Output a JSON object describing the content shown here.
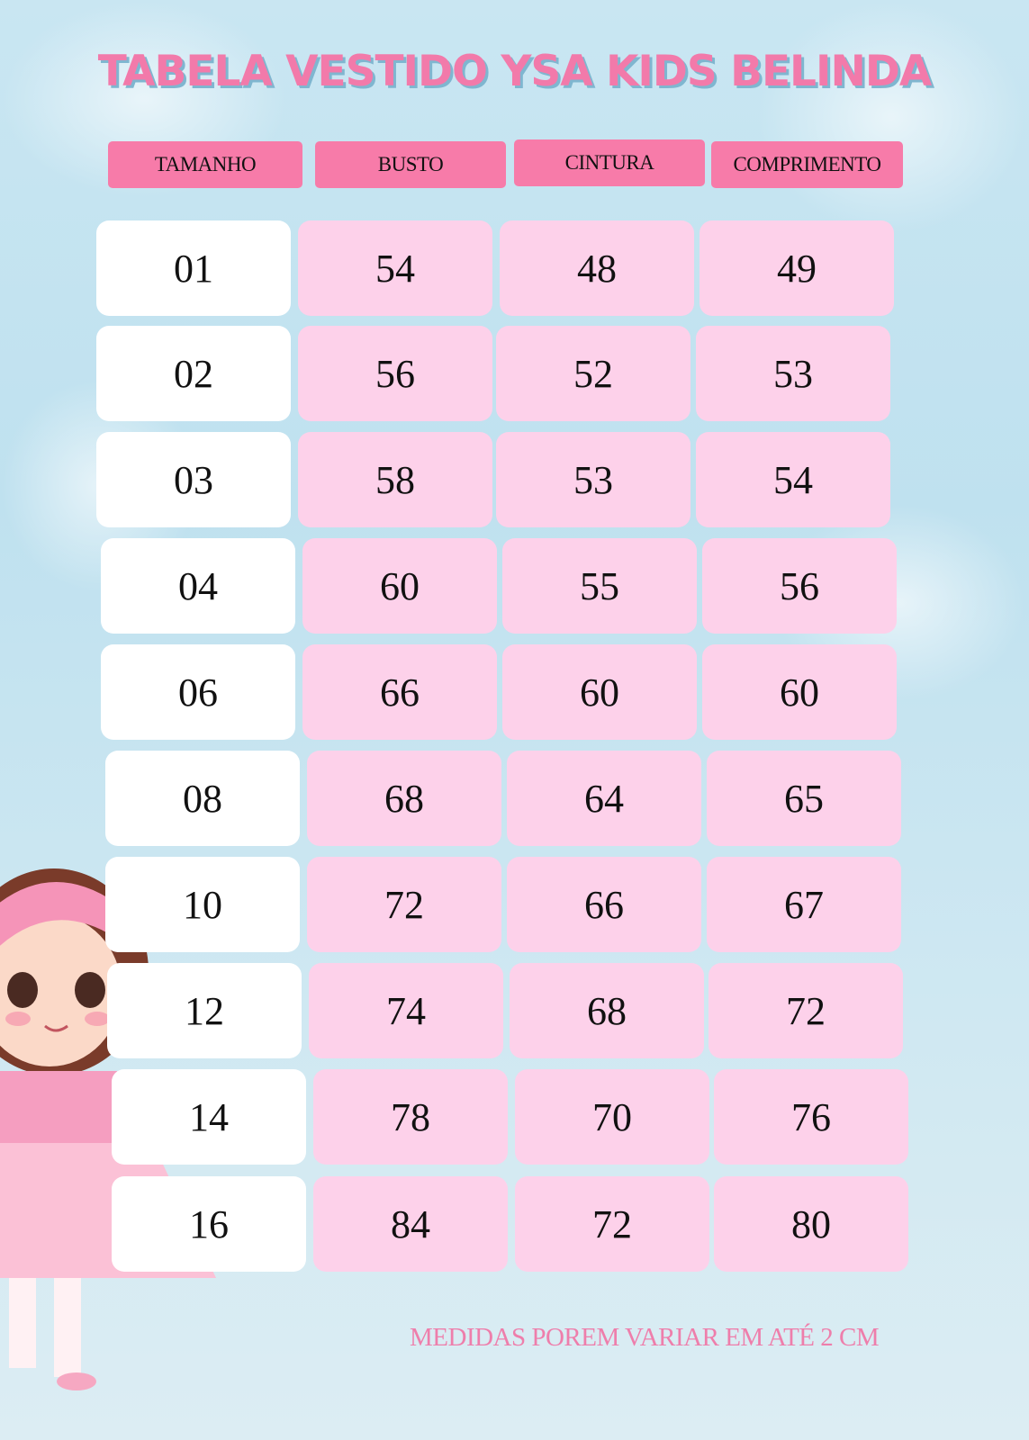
{
  "title": "TABELA  VESTIDO YSA KIDS BELINDA",
  "headers": [
    "TAMANHO",
    "BUSTO",
    "CINTURA",
    "COMPRIMENTO"
  ],
  "rows": [
    [
      "01",
      "54",
      "48",
      "49"
    ],
    [
      "02",
      "56",
      "52",
      "53"
    ],
    [
      "03",
      "58",
      "53",
      "54"
    ],
    [
      "04",
      "60",
      "55",
      "56"
    ],
    [
      "06",
      "66",
      "60",
      "60"
    ],
    [
      "08",
      "68",
      "64",
      "65"
    ],
    [
      "10",
      "72",
      "66",
      "67"
    ],
    [
      "12",
      "74",
      "68",
      "72"
    ],
    [
      "14",
      "78",
      "70",
      "76"
    ],
    [
      "16",
      "84",
      "72",
      "80"
    ]
  ],
  "note": "MEDIDAS POREM VARIAR EM ATÉ 2 CM",
  "colors": {
    "header": "#f77ba9",
    "cell": "#fdd1ea",
    "title": "#f27aaa"
  }
}
